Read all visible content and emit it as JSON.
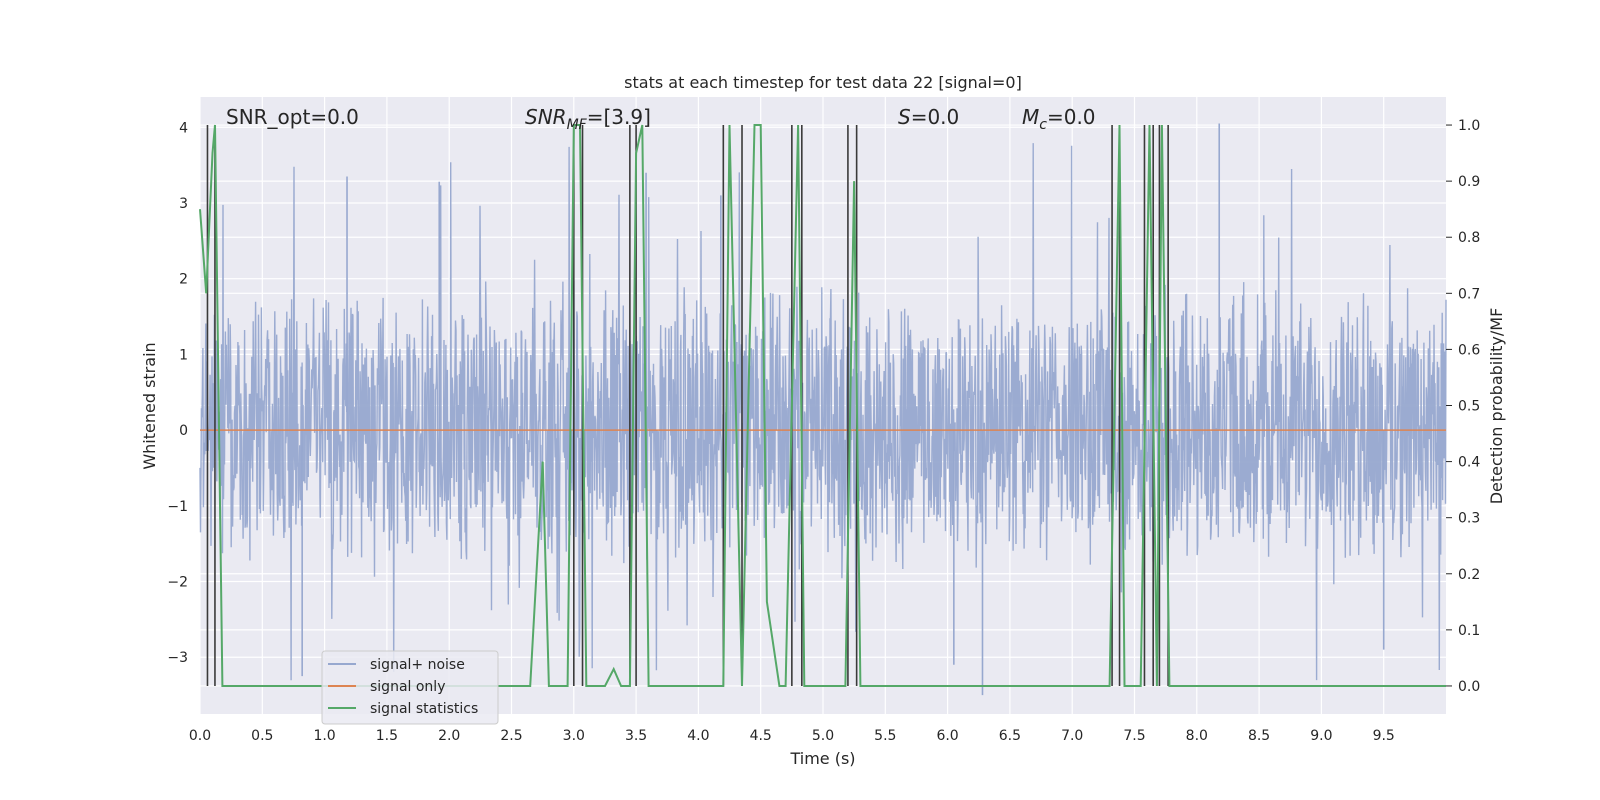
{
  "chart_data": {
    "type": "line",
    "title": "stats at each timestep for test data 22 [signal=0]",
    "xlabel": "Time (s)",
    "ylabel": "Whitened strain",
    "y2label": "Detection probability/MF",
    "xlim": [
      0.0,
      10.0
    ],
    "ylim": [
      -3.75,
      4.4
    ],
    "y2lim": [
      -0.05,
      1.05
    ],
    "xticks": [
      "0.0",
      "0.5",
      "1.0",
      "1.5",
      "2.0",
      "2.5",
      "3.0",
      "3.5",
      "4.0",
      "4.5",
      "5.0",
      "5.5",
      "6.0",
      "6.5",
      "7.0",
      "7.5",
      "8.0",
      "8.5",
      "9.0",
      "9.5"
    ],
    "xtick_values": [
      0.0,
      0.5,
      1.0,
      1.5,
      2.0,
      2.5,
      3.0,
      3.5,
      4.0,
      4.5,
      5.0,
      5.5,
      6.0,
      6.5,
      7.0,
      7.5,
      8.0,
      8.5,
      9.0,
      9.5
    ],
    "yticks": [
      "−3",
      "−2",
      "−1",
      "0",
      "1",
      "2",
      "3",
      "4"
    ],
    "ytick_values": [
      -3,
      -2,
      -1,
      0,
      1,
      2,
      3,
      4
    ],
    "y2ticks": [
      "0.0",
      "0.1",
      "0.2",
      "0.3",
      "0.4",
      "0.5",
      "0.6",
      "0.7",
      "0.8",
      "0.9",
      "1.0"
    ],
    "y2tick_values": [
      0.0,
      0.1,
      0.2,
      0.3,
      0.4,
      0.5,
      0.6,
      0.7,
      0.8,
      0.9,
      1.0
    ],
    "grid": true,
    "legend_placement": "lower-left",
    "annotations": {
      "snr_opt": "SNR_opt=0.0",
      "snr_mf_base": "SNR",
      "snr_mf_sub": "MF",
      "snr_mf_value": "=[3.9]",
      "s_italic": "S",
      "s_value": "=0.0",
      "mc_italic": "M",
      "mc_sub": "c",
      "mc_value": "=0.0"
    },
    "series": [
      {
        "name": "signal+ noise",
        "color": "#97a8cf",
        "axis": "left",
        "noise_envelope": {
          "typical_min": -1.6,
          "typical_max": 1.7,
          "peak_min": -3.5,
          "peak_max": 4.0
        },
        "notable_peaks": [
          {
            "x": 1.18,
            "y": 3.35
          },
          {
            "x": 1.92,
            "y": 3.28
          },
          {
            "x": 3.58,
            "y": 3.4
          },
          {
            "x": 4.18,
            "y": 3.1
          },
          {
            "x": 8.18,
            "y": 4.05
          },
          {
            "x": 0.82,
            "y": -3.25
          },
          {
            "x": 6.28,
            "y": -3.5
          },
          {
            "x": 6.05,
            "y": -3.1
          },
          {
            "x": 9.5,
            "y": -2.9
          }
        ]
      },
      {
        "name": "signal only",
        "color": "#dd8452",
        "axis": "left",
        "x": [
          0.0,
          10.0
        ],
        "values": [
          0.0,
          0.0
        ]
      },
      {
        "name": "signal statistics",
        "color": "#55a868",
        "axis": "right",
        "x": [
          0.0,
          0.05,
          0.1,
          0.12,
          0.18,
          2.65,
          2.75,
          2.8,
          2.95,
          3.0,
          3.05,
          3.1,
          3.25,
          3.32,
          3.38,
          3.45,
          3.5,
          3.55,
          3.6,
          4.2,
          4.25,
          4.35,
          4.45,
          4.5,
          4.55,
          4.65,
          4.7,
          4.8,
          4.85,
          5.18,
          5.25,
          5.3,
          7.3,
          7.38,
          7.42,
          7.55,
          7.62,
          7.68,
          7.72,
          7.78,
          10.0
        ],
        "values": [
          0.85,
          0.7,
          0.95,
          1.0,
          0.0,
          0.0,
          0.4,
          0.0,
          0.0,
          1.0,
          1.0,
          0.0,
          0.0,
          0.03,
          0.0,
          0.0,
          0.95,
          1.0,
          0.0,
          0.0,
          1.0,
          0.0,
          1.0,
          1.0,
          0.15,
          0.0,
          0.0,
          1.0,
          0.0,
          0.0,
          0.9,
          0.0,
          0.0,
          1.0,
          0.0,
          0.0,
          1.0,
          0.0,
          1.0,
          0.0,
          0.0
        ]
      }
    ],
    "vertical_markers": {
      "color": "#3a3a3a",
      "x": [
        0.06,
        0.12,
        3.0,
        3.07,
        3.45,
        3.5,
        4.2,
        4.35,
        4.75,
        4.83,
        5.2,
        5.27,
        7.32,
        7.38,
        7.58,
        7.65,
        7.7,
        7.77
      ]
    }
  }
}
